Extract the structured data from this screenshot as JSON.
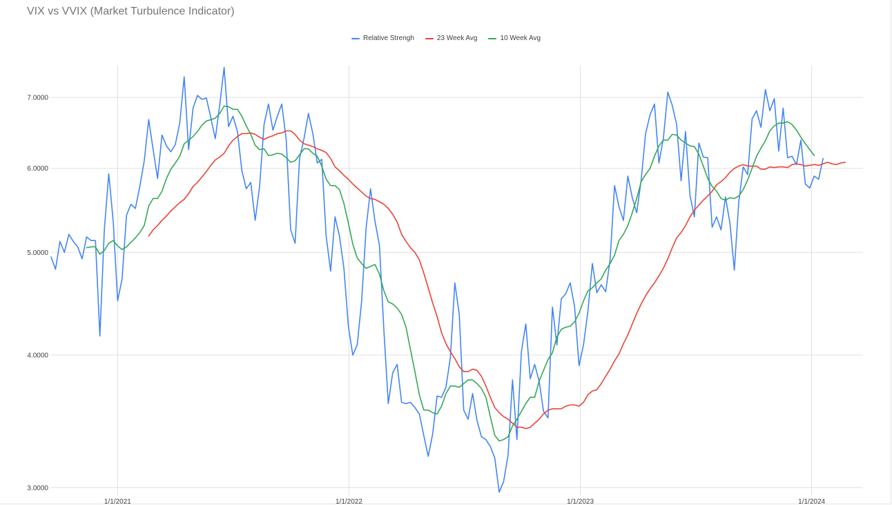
{
  "chart_data": {
    "type": "line",
    "title": "VIX vs VVIX (Market Turbulence Indicator)",
    "xlabel": "",
    "ylabel": "",
    "y_scale": "log",
    "ylim": [
      2.95,
      7.5
    ],
    "xlim": [
      "2020-09-18",
      "2024-03-22"
    ],
    "y_ticks": [
      3.0,
      4.0,
      5.0,
      6.0,
      7.0
    ],
    "y_tick_labels": [
      "3.0000",
      "4.0000",
      "5.0000",
      "6.0000",
      "7.0000"
    ],
    "x_ticks": [
      "2021-01-01",
      "2022-01-01",
      "2023-01-01",
      "2024-01-01"
    ],
    "x_tick_labels": [
      "1/1/2021",
      "1/1/2022",
      "1/1/2023",
      "1/1/2024"
    ],
    "grid": true,
    "legend_position": "top-center",
    "x_start": "2020-09-18",
    "x_interval_days": 7,
    "series": [
      {
        "name": "Relative Strengh",
        "color": "#4285f4",
        "values": [
          4.95,
          4.82,
          5.12,
          5.0,
          5.2,
          5.12,
          5.06,
          4.93,
          5.17,
          5.13,
          5.13,
          4.17,
          5.25,
          5.93,
          5.35,
          4.5,
          4.72,
          5.42,
          5.55,
          5.5,
          5.77,
          6.1,
          6.67,
          6.25,
          5.87,
          6.45,
          6.3,
          6.22,
          6.32,
          6.62,
          7.32,
          6.25,
          6.84,
          7.03,
          6.97,
          6.99,
          6.7,
          6.4,
          6.88,
          7.47,
          6.57,
          6.72,
          6.5,
          5.97,
          5.74,
          5.82,
          5.36,
          5.77,
          6.6,
          6.9,
          6.52,
          6.72,
          6.9,
          6.38,
          5.25,
          5.1,
          6.13,
          6.4,
          6.76,
          6.47,
          6.07,
          6.12,
          5.18,
          4.8,
          5.4,
          5.18,
          4.83,
          4.26,
          4.0,
          4.09,
          4.5,
          5.27,
          5.74,
          5.35,
          5.08,
          4.23,
          3.6,
          3.85,
          3.92,
          3.61,
          3.6,
          3.61,
          3.57,
          3.52,
          3.36,
          3.21,
          3.37,
          3.66,
          3.65,
          3.73,
          3.98,
          4.68,
          4.37,
          3.55,
          3.48,
          3.68,
          3.47,
          3.35,
          3.33,
          3.28,
          3.2,
          2.97,
          3.04,
          3.22,
          3.79,
          3.33,
          4.03,
          4.28,
          3.8,
          3.92,
          3.78,
          3.54,
          3.49,
          4.44,
          4.09,
          4.52,
          4.57,
          4.68,
          4.44,
          3.91,
          4.09,
          4.4,
          4.88,
          4.58,
          4.66,
          4.59,
          4.92,
          5.78,
          5.52,
          5.36,
          5.9,
          5.63,
          5.45,
          5.85,
          6.47,
          6.74,
          6.9,
          6.07,
          6.4,
          7.08,
          6.88,
          6.6,
          5.84,
          6.5,
          5.66,
          5.4,
          6.34,
          6.15,
          6.14,
          5.28,
          5.4,
          5.25,
          5.64,
          5.33,
          4.81,
          5.58,
          6.02,
          5.92,
          6.68,
          6.8,
          6.56,
          7.12,
          6.8,
          6.98,
          6.23,
          6.84,
          6.14,
          6.16,
          6.05,
          6.38,
          5.8,
          5.75,
          5.9,
          5.86,
          6.13
        ]
      },
      {
        "name": "23 Week Avg",
        "color": "#ea4335",
        "start_index": 22,
        "values": [
          5.18,
          5.25,
          5.3,
          5.36,
          5.41,
          5.47,
          5.52,
          5.57,
          5.61,
          5.68,
          5.77,
          5.82,
          5.89,
          5.96,
          6.04,
          6.11,
          6.15,
          6.2,
          6.3,
          6.38,
          6.43,
          6.47,
          6.47,
          6.48,
          6.46,
          6.42,
          6.39,
          6.42,
          6.44,
          6.47,
          6.48,
          6.51,
          6.51,
          6.46,
          6.38,
          6.33,
          6.31,
          6.29,
          6.26,
          6.24,
          6.21,
          6.13,
          6.02,
          5.97,
          5.91,
          5.86,
          5.8,
          5.75,
          5.7,
          5.65,
          5.62,
          5.61,
          5.58,
          5.55,
          5.5,
          5.43,
          5.34,
          5.2,
          5.12,
          5.05,
          5.0,
          4.92,
          4.78,
          4.63,
          4.48,
          4.35,
          4.2,
          4.1,
          4.03,
          3.97,
          3.9,
          3.86,
          3.86,
          3.88,
          3.87,
          3.82,
          3.74,
          3.65,
          3.57,
          3.53,
          3.5,
          3.48,
          3.45,
          3.42,
          3.42,
          3.41,
          3.42,
          3.45,
          3.48,
          3.52,
          3.55,
          3.56,
          3.56,
          3.56,
          3.58,
          3.59,
          3.59,
          3.58,
          3.61,
          3.67,
          3.7,
          3.71,
          3.76,
          3.82,
          3.88,
          3.95,
          4.01,
          4.1,
          4.18,
          4.28,
          4.38,
          4.47,
          4.55,
          4.62,
          4.68,
          4.75,
          4.83,
          4.93,
          5.05,
          5.16,
          5.22,
          5.3,
          5.4,
          5.48,
          5.54,
          5.6,
          5.65,
          5.71,
          5.79,
          5.83,
          5.88,
          5.95,
          6.0,
          6.03,
          6.05,
          6.03,
          6.03,
          6.03,
          5.99,
          5.99,
          6.02,
          6.01,
          6.02,
          6.02,
          6.01,
          6.05,
          6.06,
          6.05,
          6.03,
          6.04,
          6.05,
          6.04,
          6.06,
          6.08,
          6.06,
          6.05,
          6.07,
          6.08
        ]
      },
      {
        "name": "10 Week Avg",
        "color": "#34a853",
        "start_index": 8,
        "values": [
          5.05,
          5.06,
          5.06,
          4.98,
          5.02,
          5.1,
          5.13,
          5.07,
          5.03,
          5.06,
          5.11,
          5.16,
          5.22,
          5.3,
          5.53,
          5.62,
          5.62,
          5.71,
          5.87,
          5.99,
          6.07,
          6.16,
          6.33,
          6.38,
          6.43,
          6.5,
          6.59,
          6.65,
          6.67,
          6.69,
          6.76,
          6.87,
          6.86,
          6.82,
          6.82,
          6.72,
          6.58,
          6.46,
          6.31,
          6.25,
          6.26,
          6.17,
          6.18,
          6.2,
          6.19,
          6.14,
          6.08,
          6.1,
          6.18,
          6.26,
          6.26,
          6.2,
          6.16,
          6.03,
          5.86,
          5.78,
          5.78,
          5.73,
          5.56,
          5.33,
          5.09,
          4.94,
          4.88,
          4.83,
          4.85,
          4.87,
          4.77,
          4.6,
          4.49,
          4.47,
          4.43,
          4.37,
          4.25,
          4.05,
          3.86,
          3.67,
          3.55,
          3.55,
          3.53,
          3.52,
          3.58,
          3.68,
          3.74,
          3.74,
          3.73,
          3.76,
          3.79,
          3.79,
          3.76,
          3.72,
          3.65,
          3.5,
          3.36,
          3.32,
          3.33,
          3.35,
          3.43,
          3.48,
          3.54,
          3.6,
          3.65,
          3.65,
          3.78,
          3.87,
          3.96,
          4.02,
          4.16,
          4.23,
          4.25,
          4.26,
          4.3,
          4.38,
          4.5,
          4.6,
          4.63,
          4.68,
          4.72,
          4.81,
          4.88,
          4.97,
          5.13,
          5.2,
          5.3,
          5.45,
          5.62,
          5.83,
          5.92,
          6.0,
          6.16,
          6.3,
          6.38,
          6.38,
          6.46,
          6.45,
          6.38,
          6.34,
          6.3,
          6.29,
          6.19,
          6.03,
          5.87,
          5.77,
          5.71,
          5.62,
          5.6,
          5.63,
          5.62,
          5.65,
          5.73,
          5.85,
          6.0,
          6.16,
          6.27,
          6.37,
          6.51,
          6.58,
          6.62,
          6.62,
          6.64,
          6.6,
          6.52,
          6.42,
          6.33,
          6.25,
          6.17
        ]
      }
    ]
  }
}
